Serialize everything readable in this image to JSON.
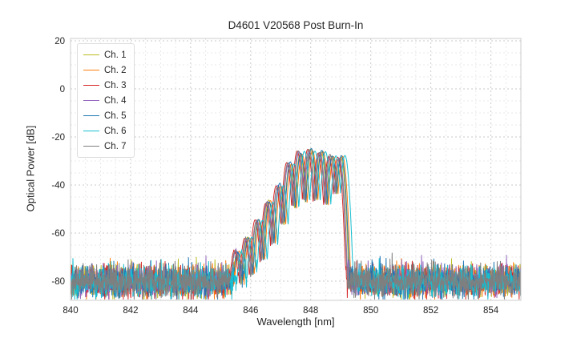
{
  "chart_data": {
    "type": "line",
    "title": "D4601 V20568 Post Burn-In",
    "xlabel": "Wavelength [nm]",
    "ylabel": "Optical Power [dB]",
    "xlim": [
      840,
      855
    ],
    "ylim": [
      -88,
      21
    ],
    "x_ticks": [
      840,
      842,
      844,
      846,
      848,
      850,
      852,
      854
    ],
    "y_ticks": [
      20,
      0,
      -20,
      -40,
      -60,
      -80
    ],
    "x_minor_step": 0.5,
    "y_minor_step": 5,
    "grid": {
      "major_color": "#c9c9c9",
      "minor_color": "#e2e2e2",
      "dash": "2 3",
      "spine_color": "#cccccc"
    },
    "noise_floor_db": -80,
    "noise_sigma_db": 3.2,
    "signal": {
      "peak_positions_nm": [
        845.55,
        845.9,
        846.25,
        846.6,
        846.95,
        847.3,
        847.65,
        848.0,
        848.35,
        848.7,
        849.0
      ],
      "peak_heights_db": [
        -68,
        -62,
        -55,
        -47,
        -40,
        -31,
        -26.5,
        -25.5,
        -26,
        -27.5,
        -28.5
      ],
      "lobe_spacing_nm": 0.35,
      "lobe_rolloff_db": 85
    },
    "series": [
      {
        "name": "Ch. 1",
        "color": "#bcbd22",
        "offset_nm": 0.0
      },
      {
        "name": "Ch. 2",
        "color": "#ff7f0e",
        "offset_nm": 0.06
      },
      {
        "name": "Ch. 3",
        "color": "#d62728",
        "offset_nm": -0.1
      },
      {
        "name": "Ch. 4",
        "color": "#9467bd",
        "offset_nm": -0.04
      },
      {
        "name": "Ch. 5",
        "color": "#1f77b4",
        "offset_nm": 0.02
      },
      {
        "name": "Ch. 6",
        "color": "#17becf",
        "offset_nm": 0.14
      },
      {
        "name": "Ch. 7",
        "color": "#7f7f7f",
        "offset_nm": -0.06
      }
    ],
    "legend": {
      "position": "upper-left"
    }
  }
}
